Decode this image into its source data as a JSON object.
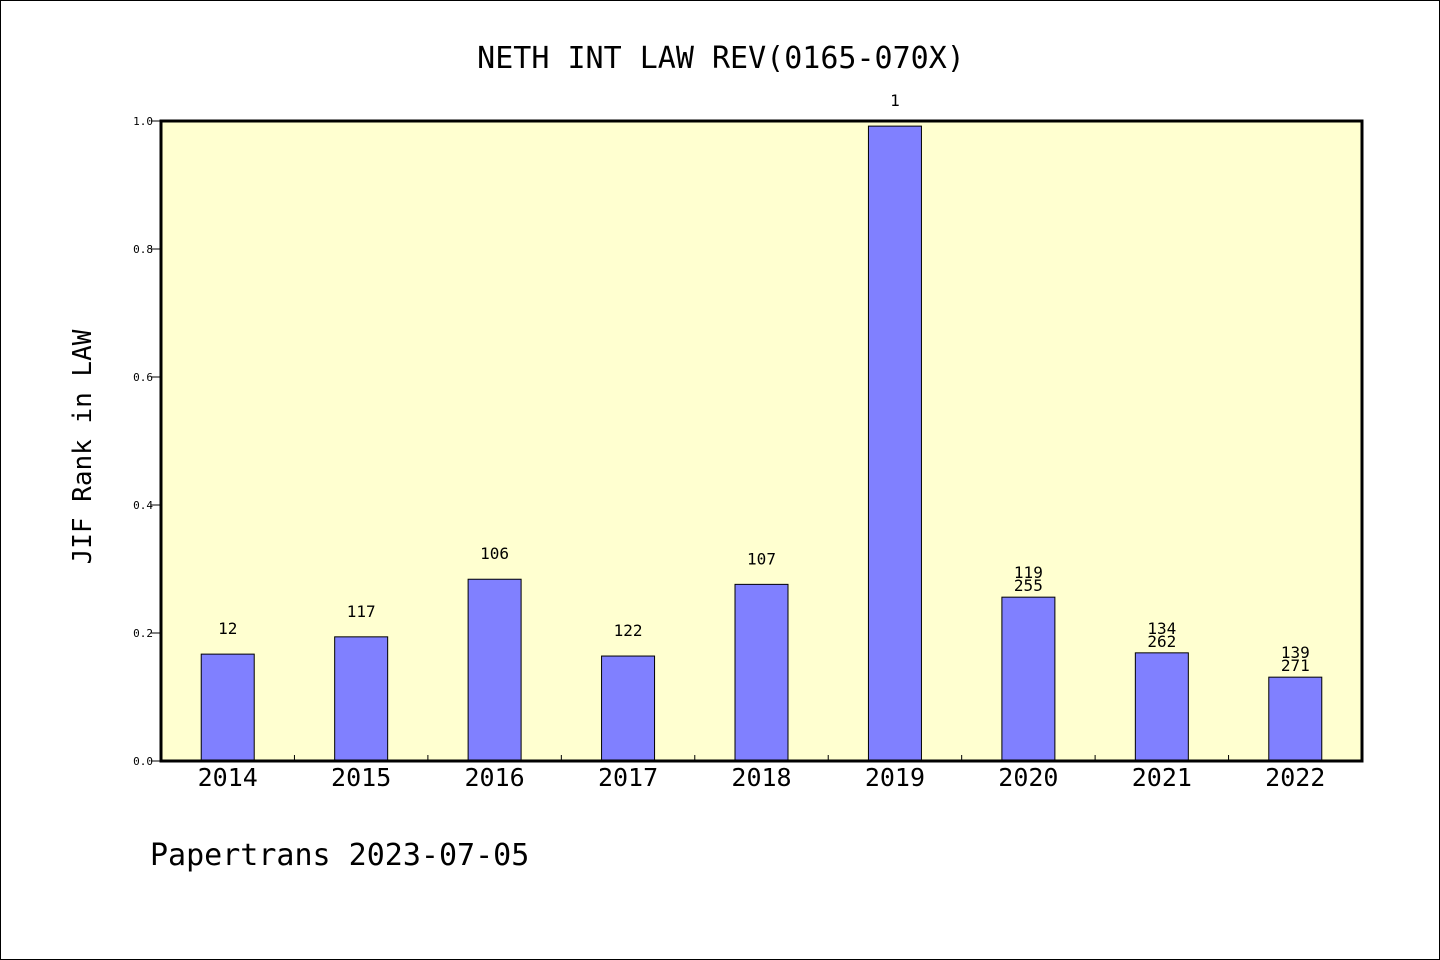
{
  "chart_data": {
    "type": "bar",
    "title": "NETH INT LAW REV(0165-070X)",
    "xlabel": "",
    "ylabel": "JIF Rank in LAW",
    "ylim": [
      0.0,
      1.0
    ],
    "yticks": [
      "0.0",
      "0.2",
      "0.4",
      "0.6",
      "0.8",
      "1.0"
    ],
    "categories": [
      "2014",
      "2015",
      "2016",
      "2017",
      "2018",
      "2019",
      "2020",
      "2021",
      "2022"
    ],
    "values": [
      0.167,
      0.194,
      0.284,
      0.164,
      0.276,
      0.992,
      0.256,
      0.169,
      0.131
    ],
    "data_labels": [
      [
        "12"
      ],
      [
        "117"
      ],
      [
        "106"
      ],
      [
        "122"
      ],
      [
        "107"
      ],
      [
        "1"
      ],
      [
        "119",
        "255"
      ],
      [
        "134",
        "262"
      ],
      [
        "139",
        "271"
      ]
    ],
    "grid": false,
    "plot_background": "#ffffd0",
    "bar_color": "#8080ff"
  },
  "footer": {
    "text": "Papertrans 2023-07-05"
  }
}
